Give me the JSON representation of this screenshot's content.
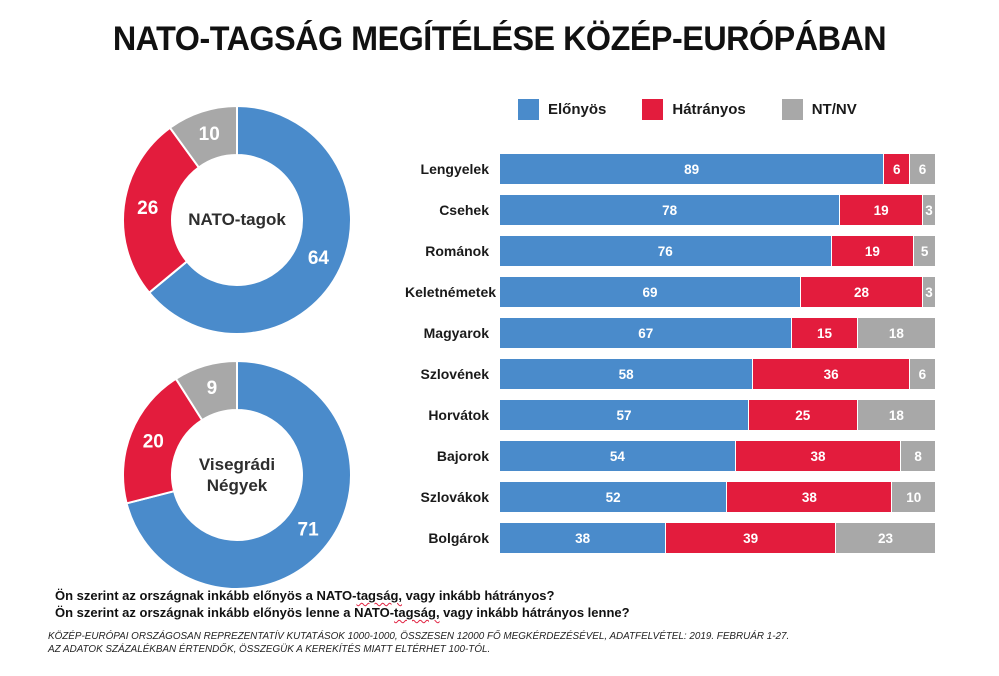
{
  "title": "NATO-TAGSÁG MEGÍTÉLÉSE KÖZÉP-EURÓPÁBAN",
  "colors": {
    "elonyos_blue": "#4A8BCB",
    "hatranyos_red": "#E31C3D",
    "ntnv_gray": "#A8A8A8"
  },
  "legend": {
    "items": [
      {
        "label": "Előnyös",
        "color": "#4A8BCB"
      },
      {
        "label": "Hátrányos",
        "color": "#E31C3D"
      },
      {
        "label": "NT/NV",
        "color": "#A8A8A8"
      }
    ]
  },
  "chart_data": [
    {
      "type": "pie",
      "subtype": "donut",
      "center_label": "NATO-tagok",
      "labels": [
        "Előnyös",
        "Hátrányos",
        "NT/NV"
      ],
      "values": [
        64,
        26,
        10
      ],
      "colors": [
        "#4A8BCB",
        "#E31C3D",
        "#A8A8A8"
      ],
      "start_angle_deg": 0,
      "direction": "clockwise"
    },
    {
      "type": "pie",
      "subtype": "donut",
      "center_label": "Visegrádi Négyek",
      "labels": [
        "Előnyös",
        "Hátrányos",
        "NT/NV"
      ],
      "values": [
        71,
        20,
        9
      ],
      "colors": [
        "#4A8BCB",
        "#E31C3D",
        "#A8A8A8"
      ],
      "start_angle_deg": 0,
      "direction": "clockwise"
    },
    {
      "type": "bar",
      "orientation": "horizontal",
      "stacked": true,
      "normalized_to_row_total": true,
      "categories": [
        "Lengyelek",
        "Csehek",
        "Románok",
        "Keletnémetek",
        "Magyarok",
        "Szlovének",
        "Horvátok",
        "Bajorok",
        "Szlovákok",
        "Bolgárok"
      ],
      "series": [
        {
          "name": "Előnyös",
          "color": "#4A8BCB",
          "values": [
            89,
            78,
            76,
            69,
            67,
            58,
            57,
            54,
            52,
            38
          ]
        },
        {
          "name": "Hátrányos",
          "color": "#E31C3D",
          "values": [
            6,
            19,
            19,
            28,
            15,
            36,
            25,
            38,
            38,
            39
          ]
        },
        {
          "name": "NT/NV",
          "color": "#A8A8A8",
          "values": [
            6,
            3,
            5,
            3,
            18,
            6,
            18,
            8,
            10,
            23
          ]
        }
      ],
      "xlim": [
        0,
        100
      ],
      "value_labels": "inside-center",
      "grid": false
    }
  ],
  "questions": {
    "line1": {
      "pre": "Ön szerint az országnak inkább előnyös a NATO-",
      "marked": "tagság,",
      "post": " vagy inkább hátrányos?"
    },
    "line2": {
      "pre": "Ön szerint az országnak inkább előnyös lenne a NATO-",
      "marked": "tagság,",
      "post": " vagy inkább hátrányos lenne?"
    }
  },
  "footnotes": {
    "line1": "KÖZÉP-EURÓPAI ORSZÁGOSAN REPREZENTATÍV KUTATÁSOK 1000-1000, ÖSSZESEN 12000 FŐ MEGKÉRDEZÉSÉVEL, ADATFELVÉTEL: 2019. FEBRUÁR 1-27.",
    "line2": "AZ ADATOK SZÁZALÉKBAN ÉRTENDŐK, ÖSSZEGÜK A KEREKÍTÉS MIATT ELTÉRHET 100-TÓL."
  }
}
